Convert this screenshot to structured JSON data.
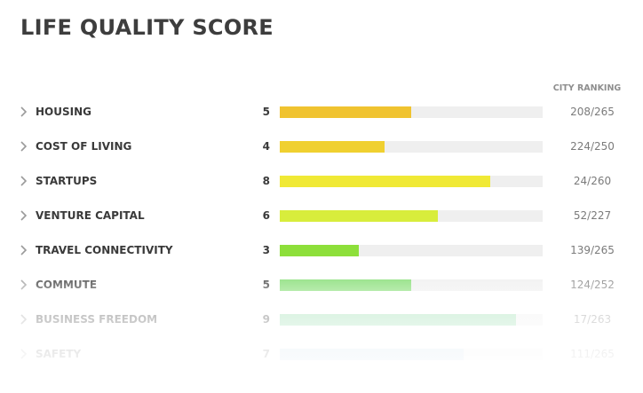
{
  "page": {
    "title": "LIFE QUALITY SCORE",
    "rank_header": "CITY RANKING"
  },
  "chart_data": {
    "type": "bar",
    "title": "LIFE QUALITY SCORE",
    "orientation": "horizontal",
    "xlim": [
      0,
      10
    ],
    "grid": false,
    "legend": "none",
    "categories": [
      "HOUSING",
      "COST OF LIVING",
      "STARTUPS",
      "VENTURE CAPITAL",
      "TRAVEL CONNECTIVITY",
      "COMMUTE",
      "BUSINESS FREEDOM",
      "SAFETY"
    ],
    "values": [
      5,
      4,
      8,
      6,
      3,
      5,
      9,
      7
    ],
    "score_labels": [
      "5",
      "4",
      "8",
      "6",
      "3",
      "5",
      "9",
      "7"
    ],
    "rankings": [
      "208/265",
      "224/250",
      "24/260",
      "52/227",
      "139/265",
      "124/252",
      "17/263",
      "111/265"
    ],
    "colors": [
      "#f0c330",
      "#f0d030",
      "#f0e935",
      "#d8ed3c",
      "#8ddf3a",
      "#7fdc6e",
      "#8ed9a6",
      "#b7cfe6"
    ]
  }
}
